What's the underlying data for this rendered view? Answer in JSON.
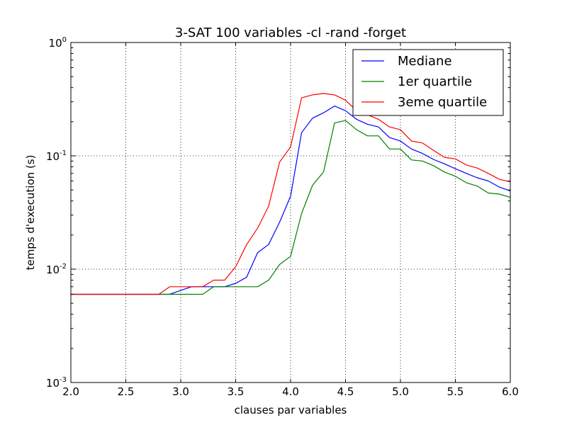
{
  "chart_data": {
    "type": "line",
    "title": "3-SAT 100 variables -cl -rand -forget",
    "xlabel": "clauses par variables",
    "ylabel": "temps d'execution (s)",
    "xlim": [
      2.0,
      6.0
    ],
    "ylim": [
      0.001,
      1.0
    ],
    "yscale": "log",
    "grid": true,
    "legend_position": "top-right",
    "x_ticks": [
      "2.0",
      "2.5",
      "3.0",
      "3.5",
      "4.0",
      "4.5",
      "5.0",
      "5.5",
      "6.0"
    ],
    "y_ticks": [
      {
        "base": "10",
        "exp": "-3",
        "value": 0.001
      },
      {
        "base": "10",
        "exp": "-2",
        "value": 0.01
      },
      {
        "base": "10",
        "exp": "-1",
        "value": 0.1
      },
      {
        "base": "10",
        "exp": "0",
        "value": 1.0
      }
    ],
    "x": [
      2.0,
      2.1,
      2.2,
      2.3,
      2.4,
      2.5,
      2.6,
      2.7,
      2.8,
      2.9,
      3.0,
      3.1,
      3.2,
      3.3,
      3.4,
      3.5,
      3.6,
      3.7,
      3.8,
      3.9,
      4.0,
      4.1,
      4.2,
      4.3,
      4.4,
      4.5,
      4.6,
      4.7,
      4.8,
      4.9,
      5.0,
      5.1,
      5.2,
      5.3,
      5.4,
      5.5,
      5.6,
      5.7,
      5.8,
      5.9,
      6.0
    ],
    "series": [
      {
        "name": "Mediane",
        "color": "#0000ff",
        "values": [
          0.006,
          0.006,
          0.006,
          0.006,
          0.006,
          0.006,
          0.006,
          0.006,
          0.006,
          0.006,
          0.0065,
          0.007,
          0.007,
          0.007,
          0.007,
          0.0075,
          0.0085,
          0.014,
          0.0165,
          0.026,
          0.044,
          0.16,
          0.215,
          0.24,
          0.275,
          0.25,
          0.21,
          0.19,
          0.18,
          0.145,
          0.135,
          0.115,
          0.105,
          0.093,
          0.085,
          0.077,
          0.07,
          0.064,
          0.06,
          0.053,
          0.049
        ]
      },
      {
        "name": "1er quartile",
        "color": "#008000",
        "values": [
          0.006,
          0.006,
          0.006,
          0.006,
          0.006,
          0.006,
          0.006,
          0.006,
          0.006,
          0.006,
          0.006,
          0.006,
          0.006,
          0.007,
          0.007,
          0.007,
          0.007,
          0.007,
          0.008,
          0.011,
          0.013,
          0.031,
          0.055,
          0.072,
          0.195,
          0.205,
          0.17,
          0.15,
          0.15,
          0.115,
          0.115,
          0.092,
          0.09,
          0.082,
          0.072,
          0.066,
          0.058,
          0.054,
          0.047,
          0.046,
          0.043
        ]
      },
      {
        "name": "3eme quartile",
        "color": "#ff0000",
        "values": [
          0.006,
          0.006,
          0.006,
          0.006,
          0.006,
          0.006,
          0.006,
          0.006,
          0.006,
          0.007,
          0.007,
          0.007,
          0.007,
          0.008,
          0.008,
          0.0105,
          0.0165,
          0.023,
          0.036,
          0.088,
          0.12,
          0.325,
          0.345,
          0.355,
          0.345,
          0.31,
          0.25,
          0.23,
          0.21,
          0.18,
          0.17,
          0.135,
          0.13,
          0.112,
          0.097,
          0.094,
          0.083,
          0.078,
          0.07,
          0.062,
          0.059
        ]
      }
    ]
  }
}
